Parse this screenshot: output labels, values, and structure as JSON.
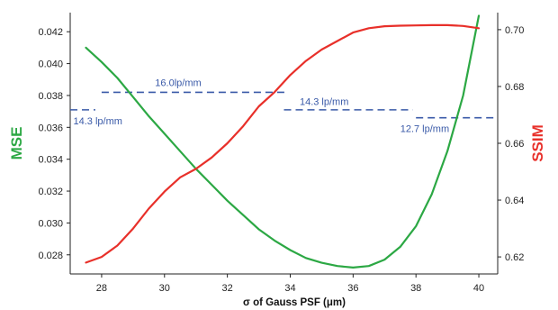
{
  "chart_data": {
    "type": "line",
    "xlabel": "σ of Gauss PSF (μm)",
    "ylabel_left": "MSE",
    "ylabel_right": "SSIM",
    "xlim": [
      27,
      40.6
    ],
    "ylim_left": [
      0.0268,
      0.0432
    ],
    "ylim_right": [
      0.614,
      0.706
    ],
    "x_ticks": [
      28,
      30,
      32,
      34,
      36,
      38,
      40
    ],
    "y_ticks_left": [
      0.028,
      0.03,
      0.032,
      0.034,
      0.036,
      0.038,
      0.04,
      0.042
    ],
    "y_ticks_right": [
      0.62,
      0.64,
      0.66,
      0.68,
      0.7
    ],
    "y_tick_labels_left": [
      "0.028",
      "0.030",
      "0.032",
      "0.034",
      "0.036",
      "0.038",
      "0.040",
      "0.042"
    ],
    "y_tick_labels_right": [
      "0.62",
      "0.64",
      "0.66",
      "0.68",
      "0.70"
    ],
    "grid": false,
    "colors": {
      "mse": "#2ca844",
      "ssim": "#e8302a",
      "annotation": "#3a5aa8"
    },
    "series": [
      {
        "axis": "left",
        "x": [
          27.5,
          28.0,
          28.5,
          29.0,
          29.5,
          30.0,
          30.5,
          31.0,
          31.5,
          32.0,
          32.5,
          33.0,
          33.5,
          34.0,
          34.5,
          35.0,
          35.5,
          36.0,
          36.5,
          37.0,
          37.5,
          38.0,
          38.5,
          39.0,
          39.5,
          40.0
        ],
        "y": [
          0.041,
          0.0401,
          0.0391,
          0.0379,
          0.0367,
          0.0356,
          0.0345,
          0.0334,
          0.0324,
          0.0314,
          0.0305,
          0.0296,
          0.0289,
          0.0283,
          0.0278,
          0.0275,
          0.0273,
          0.0272,
          0.0273,
          0.0277,
          0.0285,
          0.0298,
          0.0318,
          0.0345,
          0.038,
          0.043
        ]
      },
      {
        "axis": "right",
        "x": [
          27.5,
          28.0,
          28.5,
          29.0,
          29.5,
          30.0,
          30.5,
          31.0,
          31.5,
          32.0,
          32.5,
          33.0,
          33.5,
          34.0,
          34.5,
          35.0,
          35.5,
          36.0,
          36.5,
          37.0,
          37.5,
          38.0,
          38.5,
          39.0,
          39.5,
          40.0
        ],
        "y": [
          0.618,
          0.62,
          0.624,
          0.63,
          0.637,
          0.643,
          0.648,
          0.651,
          0.655,
          0.66,
          0.666,
          0.673,
          0.678,
          0.684,
          0.689,
          0.693,
          0.696,
          0.699,
          0.7005,
          0.7012,
          0.7014,
          0.7015,
          0.7016,
          0.7016,
          0.7013,
          0.7005
        ]
      }
    ],
    "annotations": [
      {
        "text": "14.3 lp/mm",
        "x1": 27.0,
        "x2": 27.8,
        "y": 0.0371,
        "text_x": 27.1,
        "text_y": 0.0362
      },
      {
        "text": "16.0lp/mm",
        "x1": 28.0,
        "x2": 33.9,
        "y": 0.0382,
        "text_x": 29.7,
        "text_y": 0.0386
      },
      {
        "text": "14.3 lp/mm",
        "x1": 33.8,
        "x2": 37.9,
        "y": 0.0371,
        "text_x": 34.3,
        "text_y": 0.0374
      },
      {
        "text": "12.7 lp/mm",
        "x1": 38.0,
        "x2": 40.6,
        "y": 0.0366,
        "text_x": 37.5,
        "text_y": 0.0357
      }
    ]
  }
}
